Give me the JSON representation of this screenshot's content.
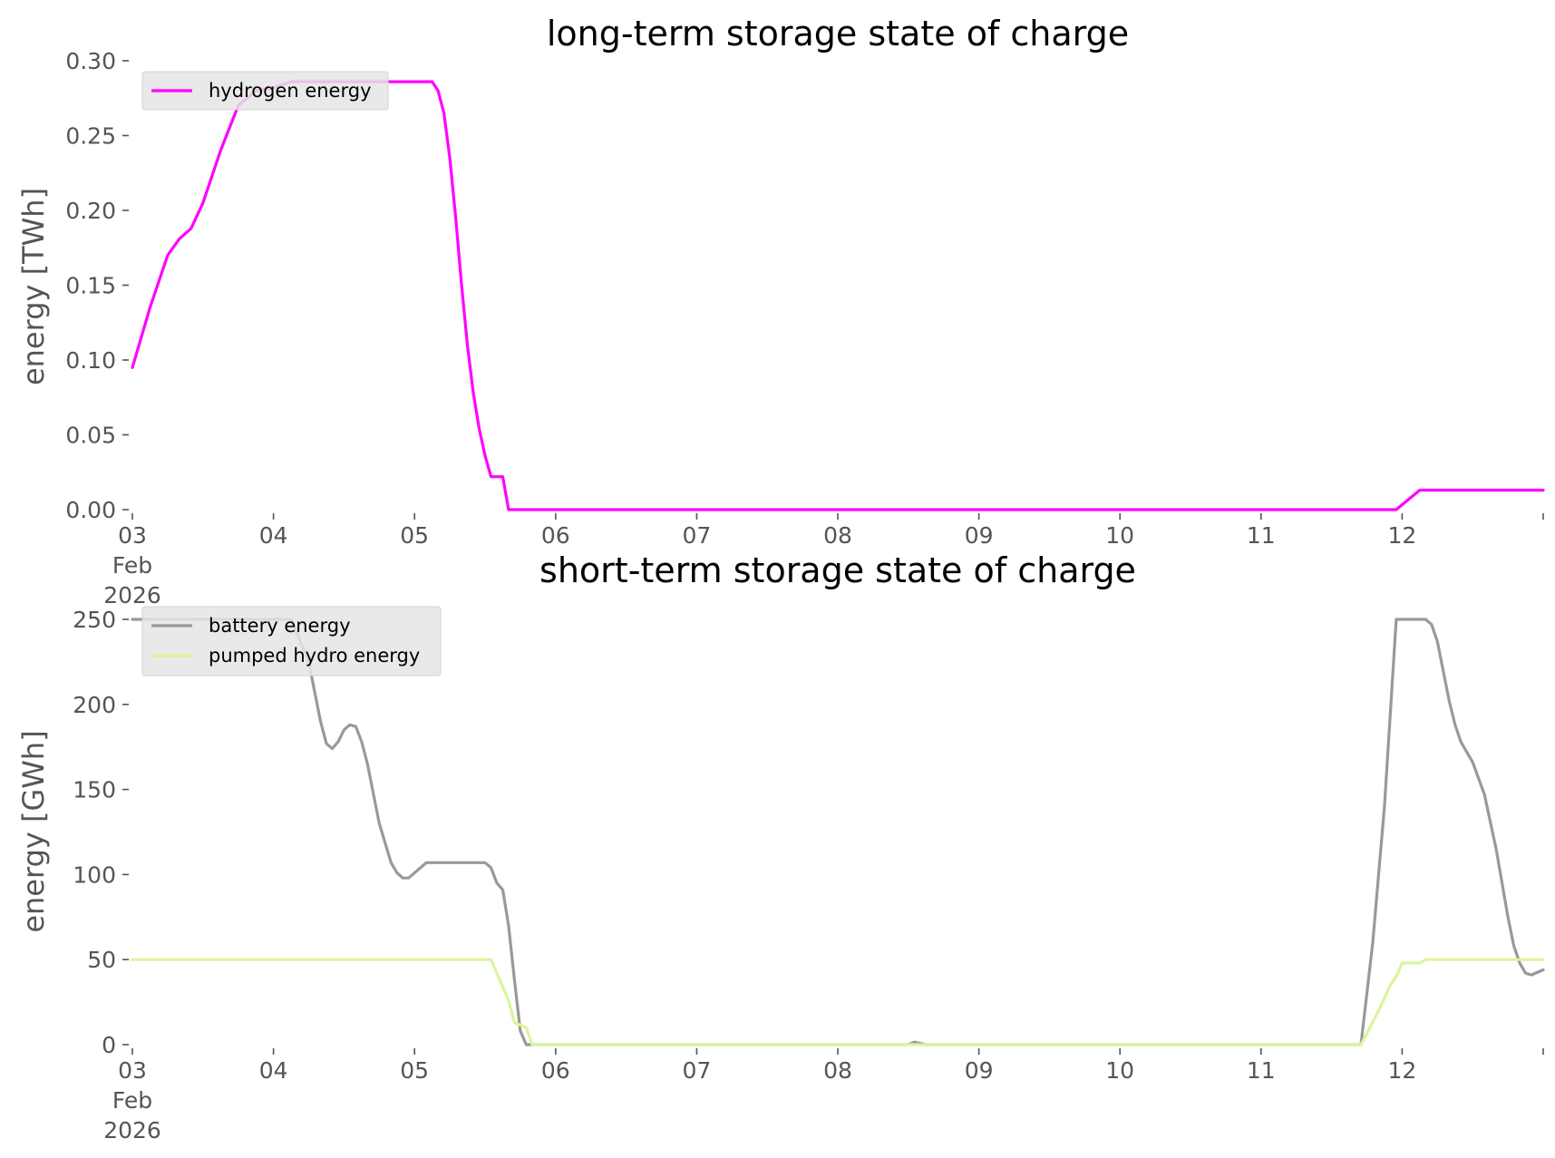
{
  "chart_data": [
    {
      "type": "line",
      "title": "long-term storage state of charge",
      "xlabel": "",
      "ylabel": "energy [TWh]",
      "ylim": [
        0,
        0.3
      ],
      "xlim": [
        "2026-02-03",
        "2026-02-13"
      ],
      "yticks": [
        "0.00",
        "0.05",
        "0.10",
        "0.15",
        "0.20",
        "0.25",
        "0.30"
      ],
      "xticks": [
        {
          "date": "2026-02-03",
          "lines": [
            "03",
            "Feb",
            "2026"
          ]
        },
        {
          "date": "2026-02-04",
          "lines": [
            "04"
          ]
        },
        {
          "date": "2026-02-05",
          "lines": [
            "05"
          ]
        },
        {
          "date": "2026-02-06",
          "lines": [
            "06"
          ]
        },
        {
          "date": "2026-02-07",
          "lines": [
            "07"
          ]
        },
        {
          "date": "2026-02-08",
          "lines": [
            "08"
          ]
        },
        {
          "date": "2026-02-09",
          "lines": [
            "09"
          ]
        },
        {
          "date": "2026-02-10",
          "lines": [
            "10"
          ]
        },
        {
          "date": "2026-02-11",
          "lines": [
            "11"
          ]
        },
        {
          "date": "2026-02-12",
          "lines": [
            "12"
          ]
        }
      ],
      "grid": false,
      "legend": "top-left",
      "series": [
        {
          "name": "hydrogen energy",
          "color": "#ff00ff",
          "points": [
            [
              "2026-02-03 00:00",
              0.095
            ],
            [
              "2026-02-03 03:00",
              0.135
            ],
            [
              "2026-02-03 06:00",
              0.17
            ],
            [
              "2026-02-03 08:00",
              0.181
            ],
            [
              "2026-02-03 10:00",
              0.188
            ],
            [
              "2026-02-03 12:00",
              0.205
            ],
            [
              "2026-02-03 15:00",
              0.24
            ],
            [
              "2026-02-03 18:00",
              0.27
            ],
            [
              "2026-02-03 21:00",
              0.28
            ],
            [
              "2026-02-04 00:00",
              0.282
            ],
            [
              "2026-02-04 03:00",
              0.286
            ],
            [
              "2026-02-04 12:00",
              0.286
            ],
            [
              "2026-02-05 00:00",
              0.286
            ],
            [
              "2026-02-05 03:00",
              0.286
            ],
            [
              "2026-02-05 04:00",
              0.28
            ],
            [
              "2026-02-05 05:00",
              0.265
            ],
            [
              "2026-02-05 06:00",
              0.235
            ],
            [
              "2026-02-05 07:00",
              0.195
            ],
            [
              "2026-02-05 08:00",
              0.15
            ],
            [
              "2026-02-05 09:00",
              0.11
            ],
            [
              "2026-02-05 10:00",
              0.078
            ],
            [
              "2026-02-05 11:00",
              0.054
            ],
            [
              "2026-02-05 12:00",
              0.036
            ],
            [
              "2026-02-05 13:00",
              0.022
            ],
            [
              "2026-02-05 15:00",
              0.022
            ],
            [
              "2026-02-05 16:00",
              0.0
            ],
            [
              "2026-02-11 23:00",
              0.0
            ],
            [
              "2026-02-12 03:00",
              0.013
            ],
            [
              "2026-02-13 00:00",
              0.013
            ]
          ]
        }
      ]
    },
    {
      "type": "line",
      "title": "short-term storage state of charge",
      "xlabel": "",
      "ylabel": "energy [GWh]",
      "ylim": [
        0,
        250
      ],
      "xlim": [
        "2026-02-03",
        "2026-02-13"
      ],
      "yticks": [
        "0",
        "50",
        "100",
        "150",
        "200",
        "250"
      ],
      "xticks": [
        {
          "date": "2026-02-03",
          "lines": [
            "03",
            "Feb",
            "2026"
          ]
        },
        {
          "date": "2026-02-04",
          "lines": [
            "04"
          ]
        },
        {
          "date": "2026-02-05",
          "lines": [
            "05"
          ]
        },
        {
          "date": "2026-02-06",
          "lines": [
            "06"
          ]
        },
        {
          "date": "2026-02-07",
          "lines": [
            "07"
          ]
        },
        {
          "date": "2026-02-08",
          "lines": [
            "08"
          ]
        },
        {
          "date": "2026-02-09",
          "lines": [
            "09"
          ]
        },
        {
          "date": "2026-02-10",
          "lines": [
            "10"
          ]
        },
        {
          "date": "2026-02-11",
          "lines": [
            "11"
          ]
        },
        {
          "date": "2026-02-12",
          "lines": [
            "12"
          ]
        }
      ],
      "grid": false,
      "legend": "top-left",
      "series": [
        {
          "name": "battery energy",
          "color": "#999999",
          "points": [
            [
              "2026-02-03 00:00",
              250
            ],
            [
              "2026-02-04 03:00",
              250
            ],
            [
              "2026-02-04 06:00",
              225
            ],
            [
              "2026-02-04 08:00",
              190
            ],
            [
              "2026-02-04 09:00",
              177
            ],
            [
              "2026-02-04 10:00",
              174
            ],
            [
              "2026-02-04 11:00",
              178
            ],
            [
              "2026-02-04 12:00",
              185
            ],
            [
              "2026-02-04 13:00",
              188
            ],
            [
              "2026-02-04 14:00",
              187
            ],
            [
              "2026-02-04 15:00",
              178
            ],
            [
              "2026-02-04 16:00",
              165
            ],
            [
              "2026-02-04 18:00",
              130
            ],
            [
              "2026-02-04 20:00",
              107
            ],
            [
              "2026-02-04 21:00",
              101
            ],
            [
              "2026-02-04 22:00",
              98
            ],
            [
              "2026-02-04 23:00",
              98
            ],
            [
              "2026-02-05 01:00",
              104
            ],
            [
              "2026-02-05 02:00",
              107
            ],
            [
              "2026-02-05 12:00",
              107
            ],
            [
              "2026-02-05 13:00",
              104
            ],
            [
              "2026-02-05 14:00",
              95
            ],
            [
              "2026-02-05 15:00",
              91
            ],
            [
              "2026-02-05 16:00",
              70
            ],
            [
              "2026-02-05 17:00",
              38
            ],
            [
              "2026-02-05 18:00",
              8
            ],
            [
              "2026-02-05 19:00",
              0
            ],
            [
              "2026-02-08 12:00",
              0
            ],
            [
              "2026-02-08 13:00",
              1.5
            ],
            [
              "2026-02-08 15:00",
              0
            ],
            [
              "2026-02-11 17:00",
              0
            ],
            [
              "2026-02-11 19:00",
              60
            ],
            [
              "2026-02-11 21:00",
              140
            ],
            [
              "2026-02-11 23:00",
              250
            ],
            [
              "2026-02-12 04:00",
              250
            ],
            [
              "2026-02-12 05:00",
              247
            ],
            [
              "2026-02-12 06:00",
              237
            ],
            [
              "2026-02-12 08:00",
              202
            ],
            [
              "2026-02-12 09:00",
              188
            ],
            [
              "2026-02-12 10:00",
              178
            ],
            [
              "2026-02-12 12:00",
              166
            ],
            [
              "2026-02-12 14:00",
              147
            ],
            [
              "2026-02-12 16:00",
              115
            ],
            [
              "2026-02-12 18:00",
              75
            ],
            [
              "2026-02-12 19:00",
              58
            ],
            [
              "2026-02-12 20:00",
              48
            ],
            [
              "2026-02-12 21:00",
              42
            ],
            [
              "2026-02-12 22:00",
              41
            ],
            [
              "2026-02-13 00:00",
              44
            ]
          ]
        },
        {
          "name": "pumped hydro energy",
          "color": "#d9f59c",
          "points": [
            [
              "2026-02-03 00:00",
              50
            ],
            [
              "2026-02-05 13:00",
              50
            ],
            [
              "2026-02-05 16:00",
              26
            ],
            [
              "2026-02-05 17:00",
              13
            ],
            [
              "2026-02-05 19:00",
              10
            ],
            [
              "2026-02-05 20:00",
              0
            ],
            [
              "2026-02-11 17:00",
              0
            ],
            [
              "2026-02-11 20:00",
              20
            ],
            [
              "2026-02-11 22:00",
              35
            ],
            [
              "2026-02-11 23:00",
              40
            ],
            [
              "2026-02-12 00:00",
              48
            ],
            [
              "2026-02-12 03:00",
              48
            ],
            [
              "2026-02-12 04:00",
              50
            ],
            [
              "2026-02-13 00:00",
              50
            ]
          ]
        }
      ]
    }
  ]
}
